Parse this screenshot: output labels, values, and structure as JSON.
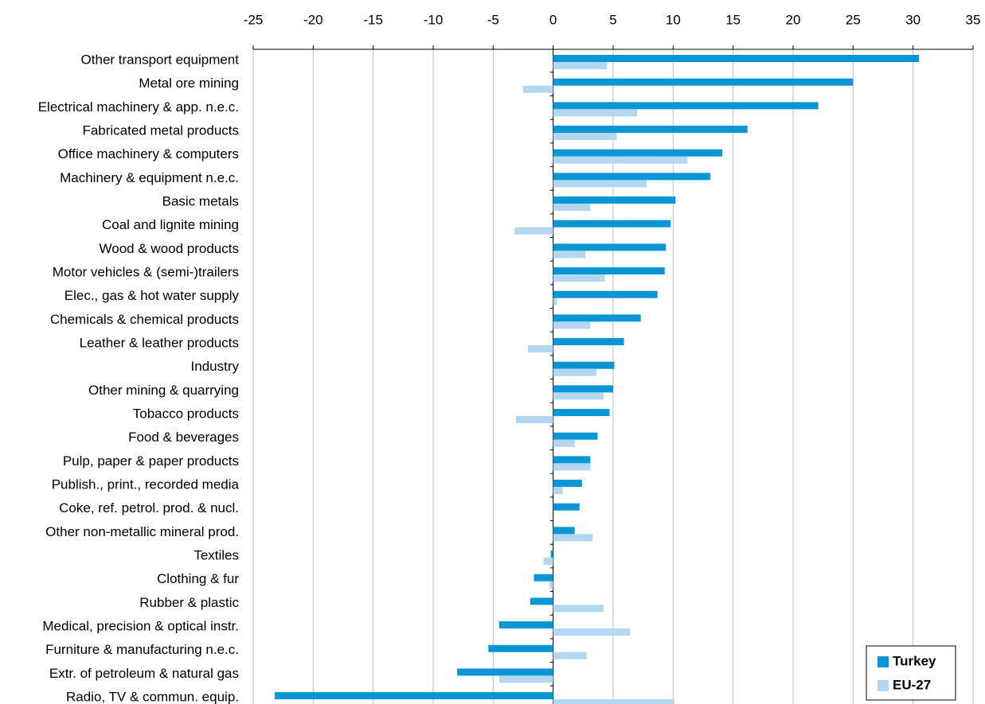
{
  "chart_data": {
    "type": "hbar",
    "categories": [
      "Other transport equipment",
      "Metal ore mining",
      "Electrical machinery & app. n.e.c.",
      "Fabricated metal products",
      "Office machinery & computers",
      "Machinery & equipment n.e.c.",
      "Basic metals",
      "Coal and lignite mining",
      "Wood & wood products",
      "Motor vehicles & (semi-)trailers",
      "Elec., gas & hot water supply",
      "Chemicals & chemical products",
      "Leather & leather products",
      "Industry",
      "Other mining & quarrying",
      "Tobacco products",
      "Food & beverages",
      "Pulp, paper & paper products",
      "Publish., print., recorded media",
      "Coke, ref. petrol. prod. & nucl.",
      "Other non-metallic mineral prod.",
      "Textiles",
      "Clothing & fur",
      "Rubber & plastic",
      "Medical, precision & optical instr.",
      "Furniture & manufacturing n.e.c.",
      "Extr. of petroleum & natural gas",
      "Radio, TV & commun. equip."
    ],
    "series": [
      {
        "name": "Turkey",
        "color": "#0a96d4",
        "values": [
          30.5,
          25.0,
          22.1,
          16.2,
          14.1,
          13.1,
          10.2,
          9.8,
          9.4,
          9.3,
          8.7,
          7.3,
          5.9,
          5.1,
          5.0,
          4.7,
          3.7,
          3.1,
          2.4,
          2.2,
          1.8,
          -0.2,
          -1.6,
          -1.9,
          -4.5,
          -5.4,
          -8.0,
          -23.2
        ]
      },
      {
        "name": "EU-27",
        "color": "#b3d7f0",
        "values": [
          4.5,
          -2.5,
          7.0,
          5.3,
          11.2,
          7.8,
          3.1,
          -3.2,
          2.7,
          4.3,
          0.3,
          3.1,
          -2.1,
          3.6,
          4.2,
          -3.1,
          1.8,
          3.1,
          0.8,
          null,
          3.3,
          -0.8,
          -0.3,
          4.2,
          6.4,
          2.8,
          -4.5,
          10.1
        ]
      }
    ],
    "xlim": [
      -25,
      35
    ],
    "xticks": [
      -25,
      -20,
      -15,
      -10,
      -5,
      0,
      5,
      10,
      15,
      20,
      25,
      30,
      35
    ],
    "grid": true,
    "legend": "bottom-right"
  }
}
